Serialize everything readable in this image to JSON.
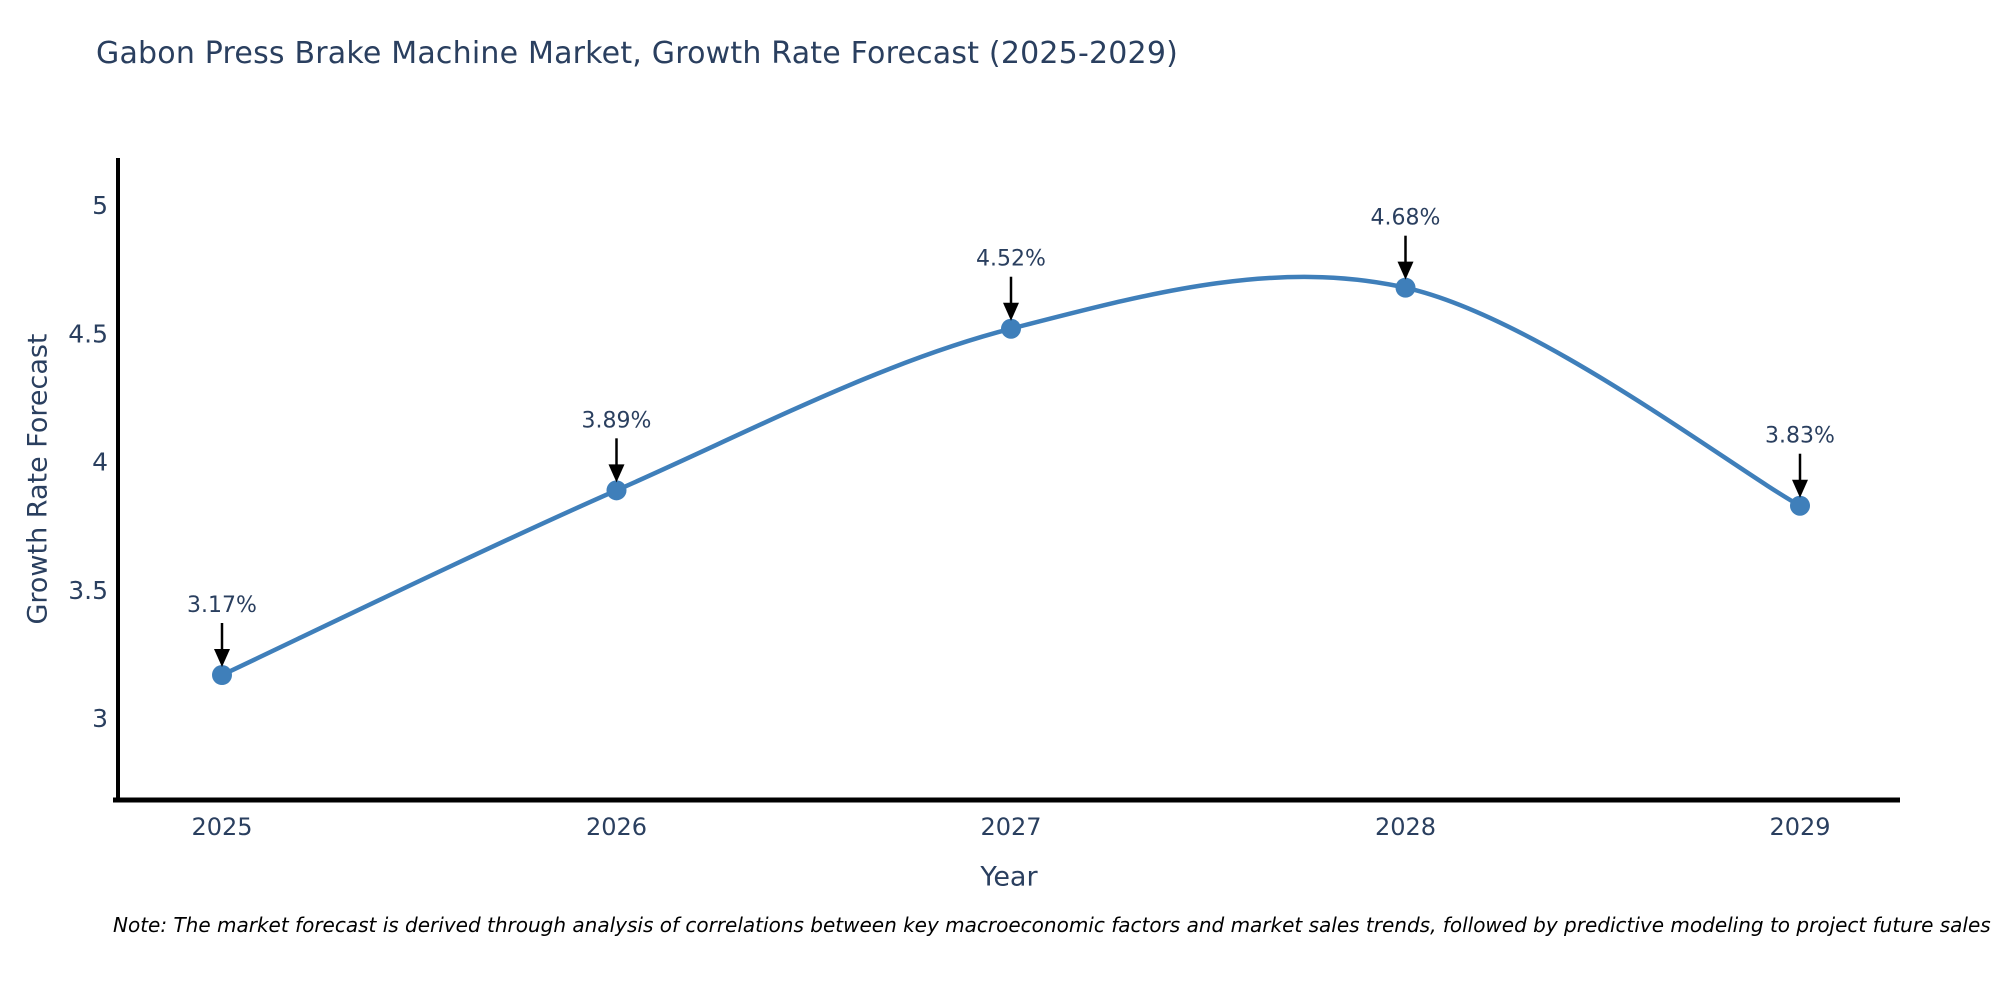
{
  "title": "Gabon Press Brake Machine Market, Growth Rate Forecast (2025-2029)",
  "note": "Note: The market forecast is derived through analysis of correlations between key macroeconomic factors and market sales trends, followed by predictive modeling to project future sales",
  "chart_data": {
    "type": "line",
    "title": "Gabon Press Brake Machine Market, Growth Rate Forecast (2025-2029)",
    "xlabel": "Year",
    "ylabel": "Growth Rate Forecast",
    "x": [
      2025,
      2026,
      2027,
      2028,
      2029
    ],
    "x_tick_labels": [
      "2025",
      "2026",
      "2027",
      "2028",
      "2029"
    ],
    "values": [
      3.17,
      3.89,
      4.52,
      4.68,
      3.83
    ],
    "point_labels": [
      "3.17%",
      "3.89%",
      "4.52%",
      "4.68%",
      "3.83%"
    ],
    "y_ticks": [
      3,
      3.5,
      4,
      4.5,
      5
    ],
    "y_tick_labels": [
      "3",
      "3.5",
      "4",
      "4.5",
      "5"
    ],
    "ylim": [
      2.68,
      5.18
    ],
    "line_shape": "spline",
    "grid": false,
    "legend_position": "none",
    "colors": {
      "line": "#3f7fba",
      "marker": "#3f7fba",
      "axis_line": "#000000",
      "text": "#2a3f5f",
      "annotation_arrow": "#000000",
      "note_text": "#000000",
      "background": "#ffffff"
    }
  }
}
